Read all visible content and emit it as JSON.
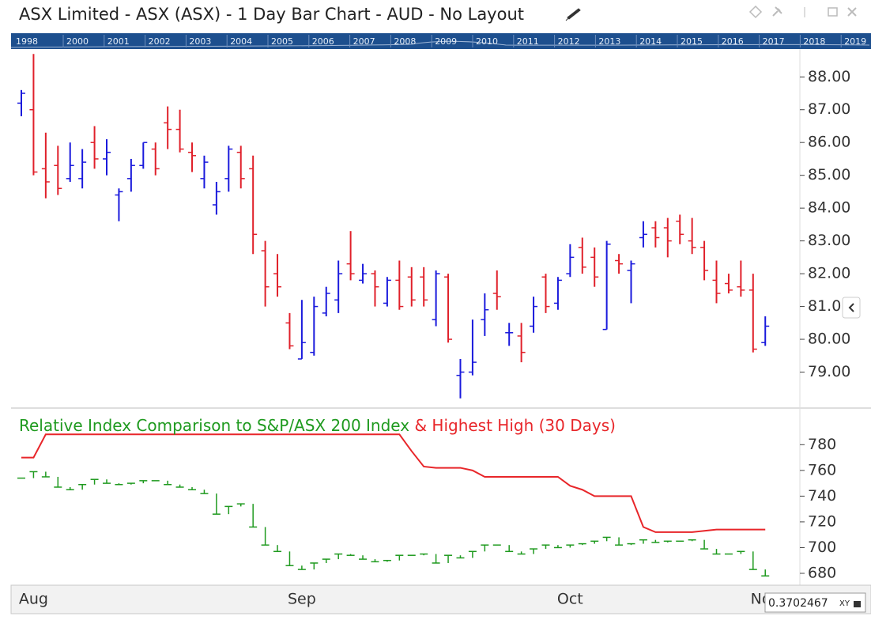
{
  "header": {
    "title": "ASX Limited - ASX (ASX) - 1 Day Bar Chart - AUD - No Layout"
  },
  "timeline_years": [
    "1998",
    "2000",
    "2001",
    "2002",
    "2003",
    "2004",
    "2005",
    "2006",
    "2007",
    "2008",
    "2009",
    "2010",
    "2011",
    "2012",
    "2013",
    "2014",
    "2015",
    "2016",
    "2017",
    "2018",
    "2019"
  ],
  "chart_data": [
    {
      "type": "ohlc",
      "up_color": "#1a1adc",
      "down_color": "#e0202a",
      "ylim": [
        78.0,
        88.85
      ],
      "yticks": [
        {
          "value": 79,
          "label": "79.00"
        },
        {
          "value": 80,
          "label": "80.00"
        },
        {
          "value": 81,
          "label": "81.00"
        },
        {
          "value": 82,
          "label": "82.00"
        },
        {
          "value": 83,
          "label": "83.00"
        },
        {
          "value": 84,
          "label": "84.00"
        },
        {
          "value": 85,
          "label": "85.00"
        },
        {
          "value": 86,
          "label": "86.00"
        },
        {
          "value": 87,
          "label": "87.00"
        },
        {
          "value": 88,
          "label": "88.00"
        }
      ],
      "open": [
        87.2,
        87.0,
        85.2,
        85.3,
        84.9,
        84.9,
        86.0,
        85.5,
        84.4,
        84.9,
        85.3,
        85.8,
        86.6,
        86.4,
        85.7,
        84.9,
        84.1,
        84.9,
        85.7,
        85.2,
        82.7,
        82.0,
        80.5,
        79.4,
        79.6,
        80.8,
        81.2,
        82.3,
        81.8,
        82.0,
        81.1,
        81.8,
        81.9,
        81.9,
        80.6,
        81.9,
        78.9,
        79.0,
        80.6,
        81.4,
        80.2,
        80.1,
        80.4,
        81.9,
        81.1,
        82.0,
        82.8,
        82.5,
        80.3,
        82.4,
        82.1,
        83.1,
        83.4,
        83.4,
        83.6,
        83.0,
        82.8,
        81.8,
        81.7,
        81.6,
        81.5,
        79.9
      ],
      "high": [
        87.6,
        88.7,
        86.3,
        85.9,
        86.0,
        85.8,
        86.5,
        86.1,
        84.6,
        85.5,
        86.0,
        86.0,
        87.1,
        87.0,
        86.0,
        85.6,
        84.8,
        85.9,
        85.9,
        85.6,
        83.0,
        82.6,
        80.8,
        81.2,
        81.3,
        81.6,
        82.4,
        83.3,
        82.3,
        82.1,
        81.9,
        82.4,
        82.2,
        82.2,
        82.1,
        82.0,
        79.4,
        80.6,
        81.4,
        82.1,
        80.5,
        80.5,
        81.3,
        82.0,
        81.9,
        82.9,
        83.1,
        82.8,
        83.0,
        82.6,
        82.4,
        83.6,
        83.6,
        83.7,
        83.8,
        83.7,
        83.0,
        82.4,
        82.0,
        82.4,
        82.0,
        80.7
      ],
      "low": [
        86.8,
        85.0,
        84.3,
        84.4,
        84.8,
        84.6,
        85.2,
        85.0,
        83.6,
        84.5,
        85.2,
        85.0,
        85.8,
        85.7,
        85.1,
        84.6,
        83.8,
        84.5,
        84.6,
        82.6,
        81.0,
        81.3,
        79.7,
        79.4,
        79.5,
        80.7,
        80.8,
        81.8,
        81.7,
        81.0,
        81.0,
        80.9,
        81.0,
        81.0,
        80.4,
        79.9,
        78.2,
        78.9,
        80.1,
        80.9,
        79.8,
        79.3,
        80.2,
        80.8,
        80.9,
        81.9,
        82.0,
        81.6,
        80.3,
        82.0,
        81.1,
        82.8,
        82.8,
        82.5,
        82.9,
        82.6,
        81.8,
        81.1,
        81.4,
        81.3,
        79.6,
        79.8
      ],
      "close": [
        87.5,
        85.1,
        84.8,
        84.6,
        85.3,
        85.4,
        85.5,
        85.7,
        84.5,
        85.3,
        86.0,
        85.2,
        86.4,
        85.8,
        85.6,
        85.4,
        84.5,
        85.8,
        84.9,
        83.2,
        81.6,
        81.6,
        79.8,
        79.9,
        81.0,
        81.4,
        82.0,
        82.0,
        82.0,
        81.6,
        81.8,
        81.0,
        81.2,
        81.2,
        82.0,
        80.0,
        79.0,
        79.3,
        80.9,
        81.3,
        80.2,
        79.6,
        81.0,
        81.0,
        81.8,
        82.5,
        82.2,
        81.9,
        82.9,
        82.3,
        82.3,
        83.2,
        83.1,
        83.0,
        83.2,
        82.8,
        82.1,
        81.4,
        81.5,
        81.5,
        79.7,
        80.4
      ]
    },
    {
      "type": "line",
      "title": "Relative Index Comparison to S&P/ASX 200 Index",
      "title2": "& Highest High (30 Days)",
      "ylim": [
        672,
        806
      ],
      "yticks": [
        680,
        700,
        720,
        740,
        760,
        780
      ],
      "categories": [
        null,
        "Aug",
        null,
        null,
        null,
        null,
        null,
        null,
        null,
        null,
        null,
        null,
        null,
        null,
        null,
        null,
        null,
        null,
        null,
        null,
        null,
        null,
        null,
        "Sep",
        null,
        null,
        null,
        null,
        null,
        null,
        null,
        null,
        null,
        null,
        null,
        null,
        null,
        null,
        null,
        null,
        null,
        null,
        null,
        null,
        null,
        "Oct",
        null,
        null,
        null,
        null,
        null,
        null,
        null,
        null,
        null,
        null,
        null,
        null,
        null,
        null,
        null,
        "Nov"
      ],
      "series": [
        {
          "name": "Relative Index Comparison to S&P/ASX 200 Index",
          "color": "#1f9a1f",
          "style": "steps",
          "values": [
            754,
            759,
            755,
            747,
            745,
            749,
            753,
            750,
            749,
            750,
            752,
            752,
            749,
            747,
            745,
            742,
            726,
            732,
            734,
            716,
            702,
            697,
            686,
            683,
            688,
            691,
            695,
            694,
            691,
            689,
            690,
            694,
            694,
            695,
            688,
            694,
            692,
            697,
            702,
            702,
            697,
            695,
            699,
            702,
            700,
            702,
            703,
            705,
            708,
            702,
            703,
            706,
            704,
            705,
            705,
            706,
            699,
            695,
            695,
            697,
            683,
            678
          ]
        },
        {
          "name": "Highest High (30 Days)",
          "color": "#e8262a",
          "style": "line",
          "values": [
            770,
            770,
            788,
            788,
            788,
            788,
            788,
            788,
            788,
            788,
            788,
            788,
            788,
            788,
            788,
            788,
            788,
            788,
            788,
            788,
            788,
            788,
            788,
            788,
            788,
            788,
            788,
            788,
            788,
            788,
            788,
            788,
            775,
            763,
            762,
            762,
            762,
            760,
            755,
            755,
            755,
            755,
            755,
            755,
            755,
            748,
            745,
            740,
            740,
            740,
            740,
            716,
            712,
            712,
            712,
            712,
            713,
            714,
            714,
            714,
            714,
            714
          ]
        }
      ]
    }
  ],
  "value_box": {
    "value": "0.3702467",
    "mode": "XY"
  }
}
